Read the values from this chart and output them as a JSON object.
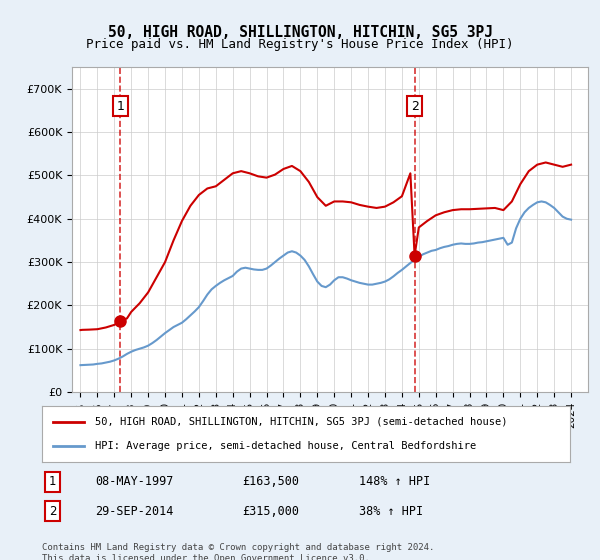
{
  "title": "50, HIGH ROAD, SHILLINGTON, HITCHIN, SG5 3PJ",
  "subtitle": "Price paid vs. HM Land Registry's House Price Index (HPI)",
  "legend_line1": "50, HIGH ROAD, SHILLINGTON, HITCHIN, SG5 3PJ (semi-detached house)",
  "legend_line2": "HPI: Average price, semi-detached house, Central Bedfordshire",
  "footnote": "Contains HM Land Registry data © Crown copyright and database right 2024.\nThis data is licensed under the Open Government Licence v3.0.",
  "transaction1": {
    "label": "1",
    "date": "08-MAY-1997",
    "price": "£163,500",
    "hpi": "148% ↑ HPI",
    "x_year": 1997.35,
    "y_price": 163500
  },
  "transaction2": {
    "label": "2",
    "date": "29-SEP-2014",
    "price": "£315,000",
    "hpi": "38% ↑ HPI",
    "x_year": 2014.75,
    "y_price": 315000
  },
  "price_line_color": "#cc0000",
  "hpi_line_color": "#6699cc",
  "dashed_line_color": "#cc0000",
  "background_color": "#e8f0f8",
  "plot_bg_color": "#ffffff",
  "ylim": [
    0,
    750000
  ],
  "yticks": [
    0,
    100000,
    200000,
    300000,
    400000,
    500000,
    600000,
    700000
  ],
  "xlim_start": 1994.5,
  "xlim_end": 2025.0,
  "hpi_data": {
    "years": [
      1995.0,
      1995.25,
      1995.5,
      1995.75,
      1996.0,
      1996.25,
      1996.5,
      1996.75,
      1997.0,
      1997.25,
      1997.5,
      1997.75,
      1998.0,
      1998.25,
      1998.5,
      1998.75,
      1999.0,
      1999.25,
      1999.5,
      1999.75,
      2000.0,
      2000.25,
      2000.5,
      2000.75,
      2001.0,
      2001.25,
      2001.5,
      2001.75,
      2002.0,
      2002.25,
      2002.5,
      2002.75,
      2003.0,
      2003.25,
      2003.5,
      2003.75,
      2004.0,
      2004.25,
      2004.5,
      2004.75,
      2005.0,
      2005.25,
      2005.5,
      2005.75,
      2006.0,
      2006.25,
      2006.5,
      2006.75,
      2007.0,
      2007.25,
      2007.5,
      2007.75,
      2008.0,
      2008.25,
      2008.5,
      2008.75,
      2009.0,
      2009.25,
      2009.5,
      2009.75,
      2010.0,
      2010.25,
      2010.5,
      2010.75,
      2011.0,
      2011.25,
      2011.5,
      2011.75,
      2012.0,
      2012.25,
      2012.5,
      2012.75,
      2013.0,
      2013.25,
      2013.5,
      2013.75,
      2014.0,
      2014.25,
      2014.5,
      2014.75,
      2015.0,
      2015.25,
      2015.5,
      2015.75,
      2016.0,
      2016.25,
      2016.5,
      2016.75,
      2017.0,
      2017.25,
      2017.5,
      2017.75,
      2018.0,
      2018.25,
      2018.5,
      2018.75,
      2019.0,
      2019.25,
      2019.5,
      2019.75,
      2020.0,
      2020.25,
      2020.5,
      2020.75,
      2021.0,
      2021.25,
      2021.5,
      2021.75,
      2022.0,
      2022.25,
      2022.5,
      2022.75,
      2023.0,
      2023.25,
      2023.5,
      2023.75,
      2024.0
    ],
    "values": [
      62000,
      62500,
      63000,
      63500,
      65000,
      66000,
      68000,
      70000,
      73000,
      77000,
      82000,
      88000,
      93000,
      97000,
      100000,
      103000,
      107000,
      113000,
      120000,
      128000,
      136000,
      143000,
      150000,
      155000,
      160000,
      168000,
      177000,
      186000,
      196000,
      210000,
      225000,
      237000,
      245000,
      252000,
      258000,
      263000,
      268000,
      278000,
      285000,
      287000,
      285000,
      283000,
      282000,
      282000,
      285000,
      292000,
      300000,
      308000,
      315000,
      322000,
      325000,
      322000,
      315000,
      305000,
      290000,
      272000,
      255000,
      245000,
      242000,
      248000,
      258000,
      265000,
      265000,
      262000,
      258000,
      255000,
      252000,
      250000,
      248000,
      248000,
      250000,
      252000,
      255000,
      260000,
      267000,
      275000,
      282000,
      290000,
      298000,
      305000,
      312000,
      318000,
      322000,
      326000,
      328000,
      332000,
      335000,
      337000,
      340000,
      342000,
      343000,
      342000,
      342000,
      343000,
      345000,
      346000,
      348000,
      350000,
      352000,
      354000,
      356000,
      340000,
      345000,
      378000,
      400000,
      415000,
      425000,
      432000,
      438000,
      440000,
      438000,
      432000,
      425000,
      415000,
      405000,
      400000,
      398000
    ]
  },
  "price_paid_data": {
    "years": [
      1995.0,
      1995.1,
      1995.5,
      1995.75,
      1996.0,
      1996.25,
      1996.5,
      1996.75,
      1997.0,
      1997.35,
      1997.75,
      1998.0,
      1998.5,
      1999.0,
      1999.5,
      2000.0,
      2000.5,
      2001.0,
      2001.5,
      2002.0,
      2002.5,
      2003.0,
      2003.5,
      2004.0,
      2004.5,
      2005.0,
      2005.5,
      2006.0,
      2006.5,
      2007.0,
      2007.5,
      2008.0,
      2008.5,
      2009.0,
      2009.5,
      2010.0,
      2010.5,
      2011.0,
      2011.5,
      2012.0,
      2012.5,
      2013.0,
      2013.5,
      2014.0,
      2014.5,
      2014.75,
      2015.0,
      2015.5,
      2016.0,
      2016.5,
      2017.0,
      2017.5,
      2018.0,
      2018.5,
      2019.0,
      2019.5,
      2020.0,
      2020.5,
      2021.0,
      2021.5,
      2022.0,
      2022.5,
      2023.0,
      2023.5,
      2024.0
    ],
    "values": [
      143000,
      143500,
      144000,
      144500,
      145000,
      147000,
      149000,
      152000,
      155000,
      163500,
      170000,
      185000,
      205000,
      230000,
      265000,
      300000,
      350000,
      395000,
      430000,
      455000,
      470000,
      475000,
      490000,
      505000,
      510000,
      505000,
      498000,
      495000,
      502000,
      515000,
      522000,
      510000,
      485000,
      450000,
      430000,
      440000,
      440000,
      438000,
      432000,
      428000,
      425000,
      428000,
      438000,
      452000,
      505000,
      315000,
      380000,
      395000,
      408000,
      415000,
      420000,
      422000,
      422000,
      423000,
      424000,
      425000,
      420000,
      440000,
      480000,
      510000,
      525000,
      530000,
      525000,
      520000,
      525000
    ]
  }
}
